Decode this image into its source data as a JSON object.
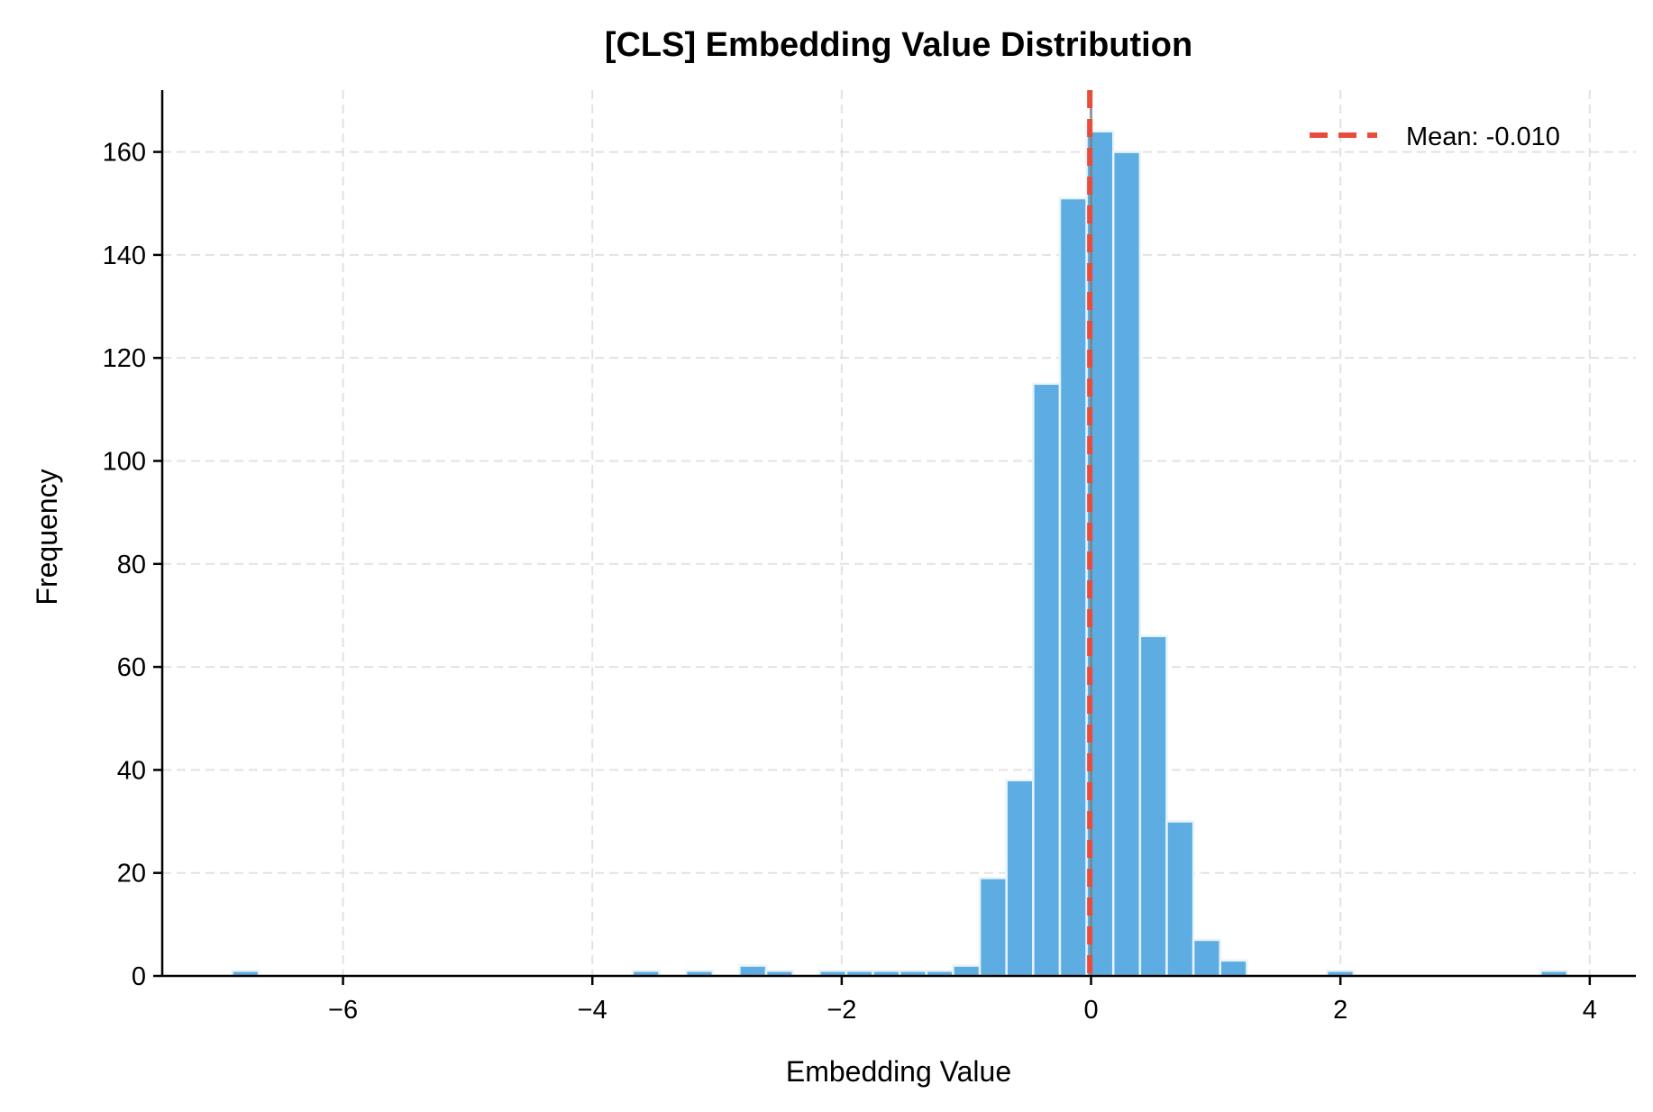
{
  "chart_data": {
    "type": "bar",
    "subtype": "histogram",
    "title": "[CLS] Embedding Value Distribution",
    "xlabel": "Embedding Value",
    "ylabel": "Frequency",
    "xlim": [
      -7.45,
      4.37
    ],
    "ylim": [
      0,
      172
    ],
    "xticks": [
      -6,
      -4,
      -2,
      0,
      2,
      4
    ],
    "xtick_labels": [
      "−6",
      "−4",
      "−2",
      "0",
      "2",
      "4"
    ],
    "yticks": [
      0,
      20,
      40,
      60,
      80,
      100,
      120,
      140,
      160
    ],
    "grid": true,
    "bins": {
      "start": -6.89,
      "width": 0.2142,
      "counts": [
        1,
        0,
        0,
        0,
        0,
        0,
        0,
        0,
        0,
        0,
        0,
        0,
        0,
        0,
        0,
        1,
        0,
        1,
        0,
        2,
        1,
        0,
        1,
        1,
        1,
        1,
        1,
        2,
        19,
        38,
        115,
        151,
        164,
        160,
        66,
        30,
        7,
        3,
        0,
        0,
        0,
        1,
        0,
        0,
        0,
        0,
        0,
        0,
        0,
        1
      ]
    },
    "mean": -0.01,
    "reference_line": 0,
    "legend": {
      "position": "top-right",
      "entries": [
        "Mean: -0.010"
      ]
    },
    "colors": {
      "bar": "#5dade2",
      "bar_edge": "#e8f4fb",
      "mean_line": "#e74c3c",
      "zero_line": "#808080"
    }
  }
}
